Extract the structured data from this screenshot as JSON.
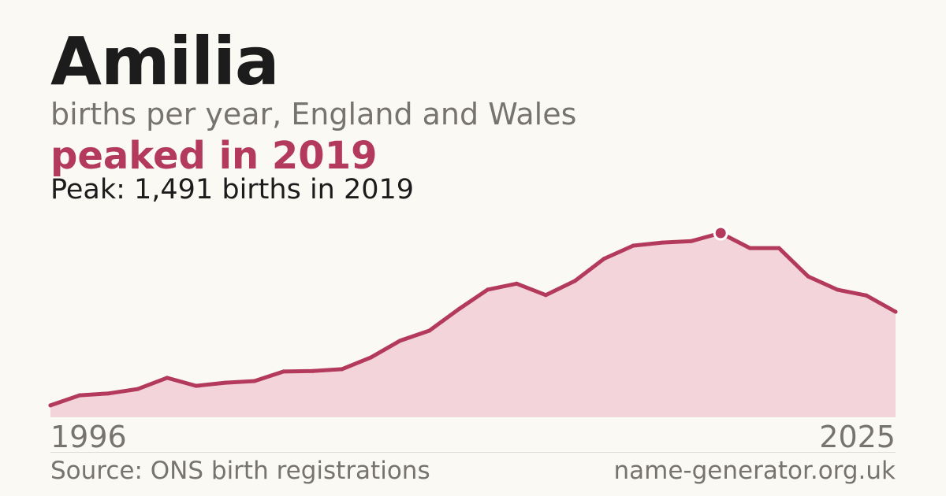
{
  "header": {
    "title": "Amilia",
    "subtitle": "births per year, England and Wales",
    "headline": "peaked in 2019",
    "peak_note": "Peak: 1,491 births in 2019"
  },
  "footer": {
    "source": "Source: ONS birth registrations",
    "site": "name-generator.org.uk"
  },
  "colors": {
    "line": "#b33a5a",
    "fill": "#f2d4da",
    "background": "#faf9f4"
  },
  "chart_data": {
    "type": "area",
    "x": [
      1996,
      1997,
      1998,
      1999,
      2000,
      2001,
      2002,
      2003,
      2004,
      2005,
      2006,
      2007,
      2008,
      2009,
      2010,
      2011,
      2012,
      2013,
      2014,
      2015,
      2016,
      2017,
      2018,
      2019,
      2020,
      2021,
      2022,
      2023,
      2024,
      2025
    ],
    "values": [
      96,
      178,
      193,
      229,
      319,
      254,
      280,
      293,
      370,
      374,
      389,
      485,
      620,
      701,
      873,
      1033,
      1081,
      989,
      1104,
      1283,
      1389,
      1414,
      1426,
      1491,
      1369,
      1369,
      1140,
      1033,
      986,
      854
    ],
    "peak": {
      "x": 2019,
      "value": 1491
    },
    "x_tick_labels": [
      "1996",
      "2025"
    ],
    "ylim": [
      0,
      1491
    ],
    "grid": false
  }
}
